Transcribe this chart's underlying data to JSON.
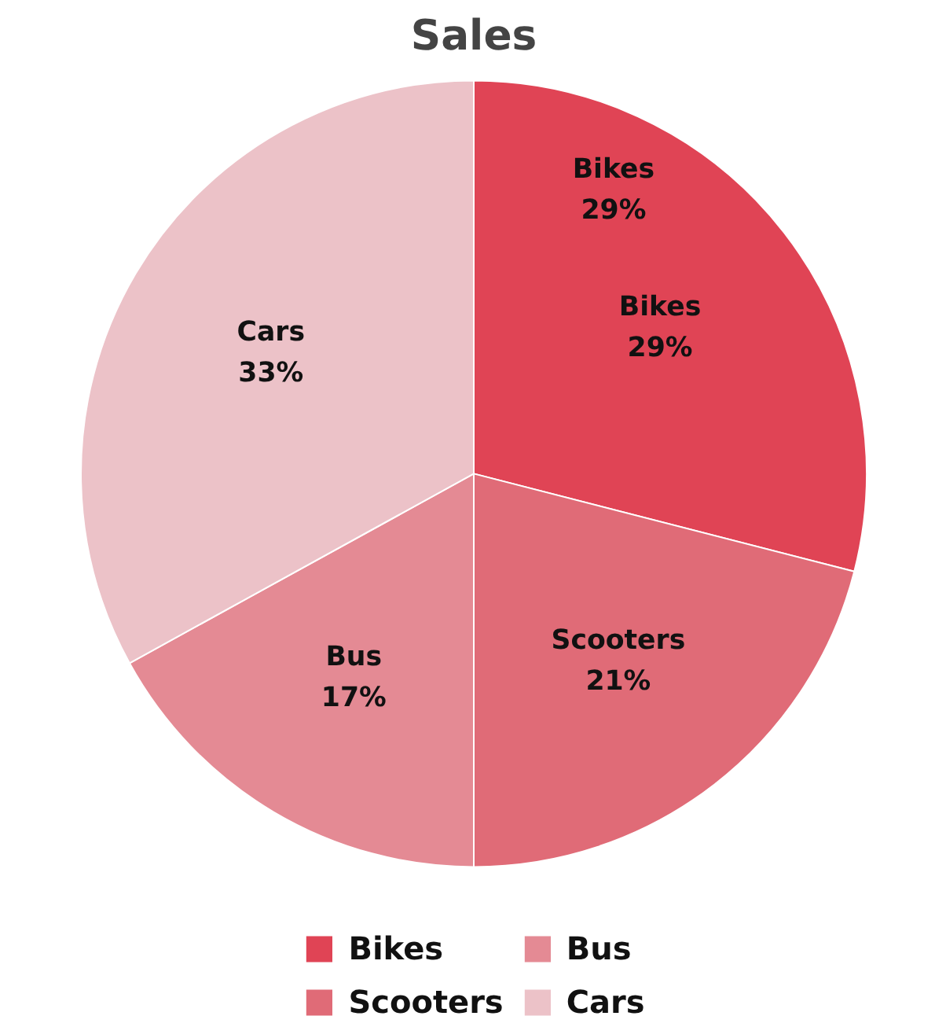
{
  "chart_data": {
    "type": "pie",
    "title": "Sales",
    "categories": [
      "Bikes",
      "Scooters",
      "Bus",
      "Cars"
    ],
    "values": [
      29,
      21,
      17,
      33
    ],
    "value_labels": [
      "29%",
      "21%",
      "17%",
      "33%"
    ],
    "colors": [
      "#e04455",
      "#e06b77",
      "#e48a94",
      "#ecc2c8"
    ],
    "annotations": [
      "Bikes\n29%"
    ],
    "legend": "bottom"
  }
}
